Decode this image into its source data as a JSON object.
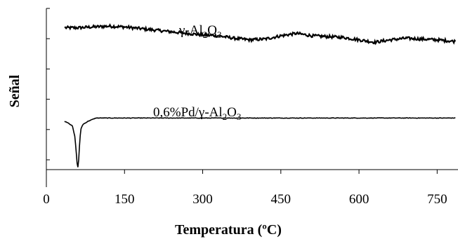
{
  "chart_data": {
    "type": "line",
    "title": "",
    "xlabel": "Temperatura (ºC)",
    "ylabel": "Señal",
    "xlim": [
      0,
      790
    ],
    "xticks": [
      0,
      150,
      300,
      450,
      600,
      750
    ],
    "ytick_count": 6,
    "y_units": "arbitrary",
    "ylim": [
      0,
      100
    ],
    "grid": false,
    "legend": "none",
    "series": [
      {
        "name": "γ-Al2O3",
        "label_parts": [
          {
            "t": "γ-Al",
            "sub": false
          },
          {
            "t": "2",
            "sub": true
          },
          {
            "t": "O",
            "sub": false
          },
          {
            "t": "3",
            "sub": true
          }
        ],
        "color": "#000000",
        "x": [
          35,
          60,
          90,
          120,
          150,
          180,
          210,
          240,
          270,
          300,
          330,
          360,
          390,
          420,
          450,
          480,
          510,
          540,
          570,
          600,
          630,
          660,
          690,
          720,
          750,
          785
        ],
        "y": [
          88,
          88,
          88.5,
          89,
          88.5,
          87.5,
          86.5,
          85.5,
          84.5,
          83.5,
          83,
          81.5,
          80.5,
          81,
          83,
          84.5,
          83,
          82.5,
          82,
          80.5,
          79,
          80.5,
          81.5,
          81,
          80.5,
          79.5
        ],
        "noise": 0.9,
        "stroke_width": 2.2
      },
      {
        "name": "0,6%Pd/γ-Al2O3",
        "label_parts": [
          {
            "t": "0,6%Pd/γ-Al",
            "sub": false
          },
          {
            "t": "2",
            "sub": true
          },
          {
            "t": "O",
            "sub": false
          },
          {
            "t": "3",
            "sub": true
          }
        ],
        "color": "#000000",
        "x": [
          35,
          42,
          50,
          55,
          58,
          60,
          62,
          64,
          66,
          70,
          80,
          95,
          120,
          200,
          300,
          400,
          500,
          600,
          700,
          785
        ],
        "y": [
          30,
          29,
          27,
          20,
          8,
          0,
          6,
          17,
          25,
          28,
          30,
          32,
          32,
          32,
          32,
          32,
          32,
          32,
          32,
          32
        ],
        "noise": 0.15,
        "stroke_width": 1.6
      }
    ]
  }
}
